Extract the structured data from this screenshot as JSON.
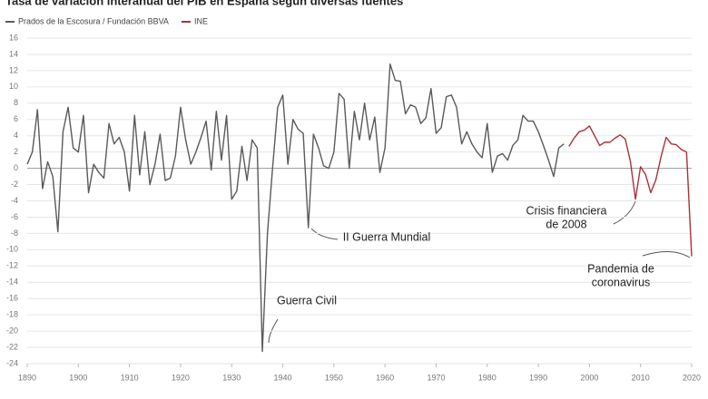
{
  "chart_data": {
    "type": "line",
    "title": "Tasa de variación interanual del PIB en España según diversas fuentes",
    "xlim": [
      1890,
      2020
    ],
    "xticks": [
      1890,
      1900,
      1910,
      1920,
      1930,
      1940,
      1950,
      1960,
      1970,
      1980,
      1990,
      2000,
      2010,
      2020
    ],
    "ylim": [
      -24,
      16
    ],
    "yticks": [
      -24,
      -22,
      -20,
      -18,
      -16,
      -14,
      -12,
      -10,
      -8,
      -6,
      -4,
      -2,
      0,
      2,
      4,
      6,
      8,
      10,
      12,
      14,
      16
    ],
    "grid": true,
    "legend": "top-left",
    "series": [
      {
        "name": "Prados de la Escosura / Fundación BBVA",
        "color": "#5a5a5a",
        "x": [
          1890,
          1891,
          1892,
          1893,
          1894,
          1895,
          1896,
          1897,
          1898,
          1899,
          1900,
          1901,
          1902,
          1903,
          1904,
          1905,
          1906,
          1907,
          1908,
          1909,
          1910,
          1911,
          1912,
          1913,
          1914,
          1915,
          1916,
          1917,
          1918,
          1919,
          1920,
          1921,
          1922,
          1923,
          1924,
          1925,
          1926,
          1927,
          1928,
          1929,
          1930,
          1931,
          1932,
          1933,
          1934,
          1935,
          1936,
          1937,
          1938,
          1939,
          1940,
          1941,
          1942,
          1943,
          1944,
          1945,
          1946,
          1947,
          1948,
          1949,
          1950,
          1951,
          1952,
          1953,
          1954,
          1955,
          1956,
          1957,
          1958,
          1959,
          1960,
          1961,
          1962,
          1963,
          1964,
          1965,
          1966,
          1967,
          1968,
          1969,
          1970,
          1971,
          1972,
          1973,
          1974,
          1975,
          1976,
          1977,
          1978,
          1979,
          1980,
          1981,
          1982,
          1983,
          1984,
          1985,
          1986,
          1987,
          1988,
          1989,
          1990,
          1991,
          1992,
          1993,
          1994,
          1995
        ],
        "values": [
          0.5,
          2,
          7.2,
          -2.5,
          0.8,
          -1,
          -7.8,
          4.5,
          7.5,
          2.5,
          2,
          6.5,
          -3,
          0.5,
          -0.5,
          -1.2,
          5.5,
          3,
          3.8,
          2,
          -2.8,
          6.5,
          -0.8,
          4.5,
          -2,
          0.5,
          4.2,
          -1.5,
          -1.2,
          1.5,
          7.5,
          3.5,
          0.5,
          2,
          3.8,
          5.8,
          -0.2,
          7,
          1,
          6.5,
          -3.8,
          -2.8,
          2.7,
          -1.5,
          3.5,
          2.5,
          -22.5,
          -8,
          0,
          7.5,
          9,
          0.5,
          6,
          4.8,
          4.3,
          -7.3,
          4.2,
          2.5,
          0.3,
          0,
          2,
          9.2,
          8.5,
          0,
          7,
          3.5,
          8,
          3.5,
          6.3,
          -0.5,
          2.5,
          12.8,
          10.8,
          10.7,
          6.7,
          7.8,
          7.5,
          5.5,
          6.2,
          9.8,
          4.3,
          5,
          8.8,
          9,
          7.5,
          3,
          4.5,
          3,
          2,
          1.3,
          5.5,
          -0.5,
          1.5,
          1.8,
          1,
          2.8,
          3.5,
          6.5,
          5.8,
          5.8,
          4.5,
          2.8,
          1,
          -1,
          2.5,
          3
        ]
      },
      {
        "name": "INE",
        "color": "#a83236",
        "x": [
          1996,
          1997,
          1998,
          1999,
          2000,
          2001,
          2002,
          2003,
          2004,
          2005,
          2006,
          2007,
          2008,
          2009,
          2010,
          2011,
          2012,
          2013,
          2014,
          2015,
          2016,
          2017,
          2018,
          2019,
          2020
        ],
        "values": [
          2.7,
          3.7,
          4.5,
          4.7,
          5.2,
          4,
          2.8,
          3.2,
          3.2,
          3.7,
          4.1,
          3.6,
          0.9,
          -3.8,
          0.2,
          -0.8,
          -3,
          -1.4,
          1.4,
          3.8,
          3,
          2.9,
          2.3,
          2,
          -10.8
        ]
      }
    ],
    "annotations": [
      {
        "lines": [
          "Guerra Civil"
        ]
      },
      {
        "lines": [
          "II Guerra Mundial"
        ]
      },
      {
        "lines": [
          "Crisis financiera",
          "de 2008"
        ]
      },
      {
        "lines": [
          "Pandemia de",
          "coronavirus"
        ]
      }
    ]
  }
}
